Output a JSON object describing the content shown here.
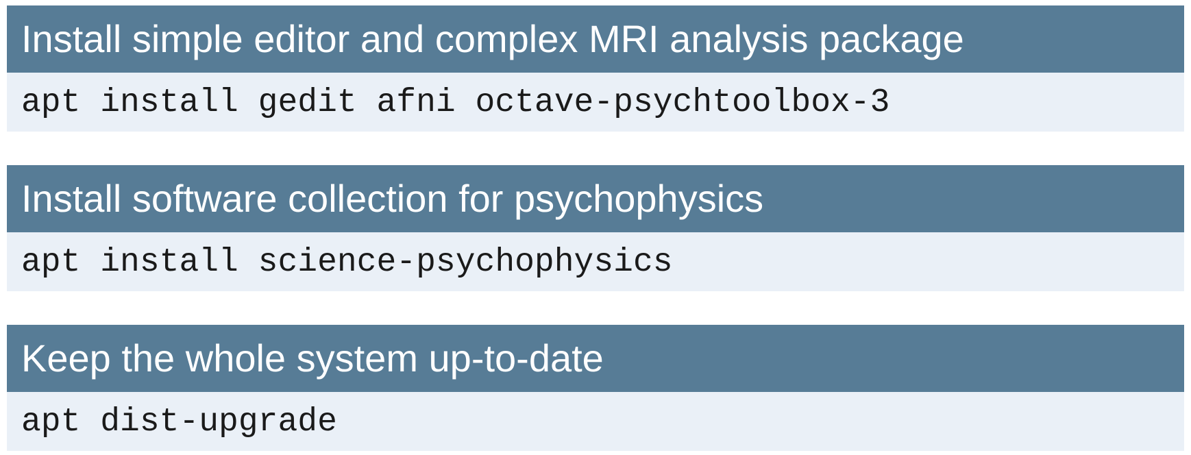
{
  "blocks": [
    {
      "title": "Install simple editor and complex MRI analysis package",
      "command": "apt install gedit afni octave-psychtoolbox-3"
    },
    {
      "title": "Install software collection for psychophysics",
      "command": "apt install science-psychophysics"
    },
    {
      "title": "Keep the whole system up-to-date",
      "command": "apt dist-upgrade"
    }
  ],
  "colors": {
    "header_bg": "#577c96",
    "header_text": "#ffffff",
    "body_bg": "#eaf0f7",
    "body_text": "#1a1a1a"
  }
}
